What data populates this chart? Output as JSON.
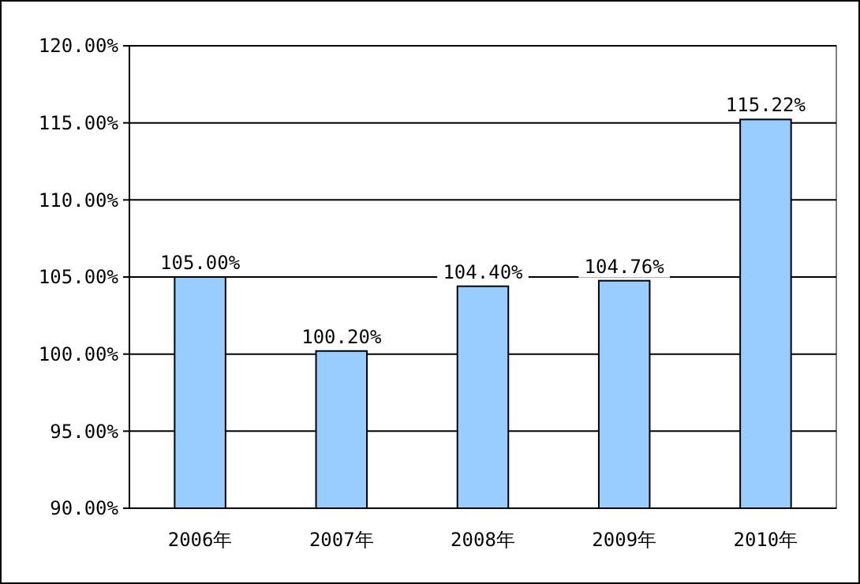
{
  "chart_data": {
    "type": "bar",
    "categories": [
      "2006年",
      "2007年",
      "2008年",
      "2009年",
      "2010年"
    ],
    "values": [
      105.0,
      100.2,
      104.4,
      104.76,
      115.22
    ],
    "value_labels": [
      "105.00%",
      "100.20%",
      "104.40%",
      "104.76%",
      "115.22%"
    ],
    "color": "#99ccff",
    "ylim": [
      90,
      120
    ],
    "yticks": [
      {
        "value": 90,
        "label": "90.00%"
      },
      {
        "value": 95,
        "label": "95.00%"
      },
      {
        "value": 100,
        "label": "100.00%"
      },
      {
        "value": 105,
        "label": "105.00%"
      },
      {
        "value": 110,
        "label": "110.00%"
      },
      {
        "value": 115,
        "label": "115.00%"
      },
      {
        "value": 120,
        "label": "120.00%"
      }
    ],
    "grid": "y"
  }
}
